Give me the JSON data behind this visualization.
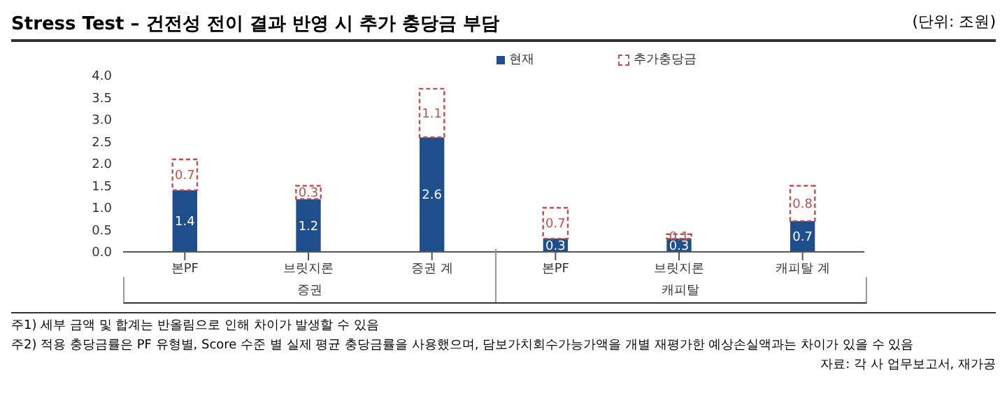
{
  "chart_data": {
    "type": "bar",
    "title": "Stress Test – 건전성 전이 결과 반영 시 추가 충당금 부담",
    "stacked": true,
    "categories": [
      "본PF",
      "브릿지론",
      "증권 계",
      "본PF",
      "브릿지론",
      "캐피탈 계"
    ],
    "series": [
      {
        "name": "현재",
        "color": "#1f4e8c",
        "values": [
          1.4,
          1.2,
          2.6,
          0.3,
          0.3,
          0.7
        ]
      },
      {
        "name": "추가충당금",
        "color": "#c0504d",
        "values": [
          0.7,
          0.3,
          1.1,
          0.7,
          0.1,
          0.8
        ]
      }
    ],
    "ylim": [
      0,
      4
    ],
    "yticks": [
      {
        "value": 0,
        "label": "0.0"
      },
      {
        "value": 0.5,
        "label": "0.5"
      },
      {
        "value": 1,
        "label": "1.0"
      },
      {
        "value": 1.5,
        "label": "1.5"
      },
      {
        "value": 2,
        "label": "2.0"
      },
      {
        "value": 2.5,
        "label": "2.5"
      },
      {
        "value": 3,
        "label": "3.0"
      },
      {
        "value": 3.5,
        "label": "3.5"
      },
      {
        "value": 4,
        "label": "4.0"
      }
    ],
    "data_labels": true,
    "legend": "top right",
    "grid": false,
    "annotations": [
      "(단위: 조원)",
      "증권",
      "캐피탈",
      "주1) 세부 금액 및 합계는 반올림으로 인해 차이가 발생할 수 있음",
      "주2) 적용 충당금률은 PF 유형별, Score 수준 별 실제 평균 충당금률을 사용했으며, 담보가치회수가능가액을 개별 재평가한 예상손실액과는 차이가 있을 수 있음",
      "자료: 각 사 업무보고서, 재가공"
    ]
  }
}
